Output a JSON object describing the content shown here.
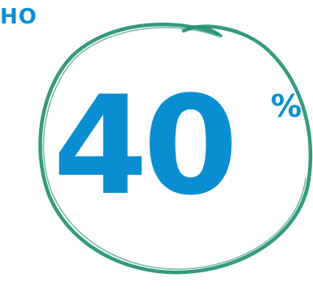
{
  "corner_text": "НО",
  "stat": {
    "value": "40",
    "unit": "%"
  },
  "colors": {
    "text_blue": "#0a8ed2",
    "circle_green": "#1f8f72",
    "background": "#ffffff"
  }
}
